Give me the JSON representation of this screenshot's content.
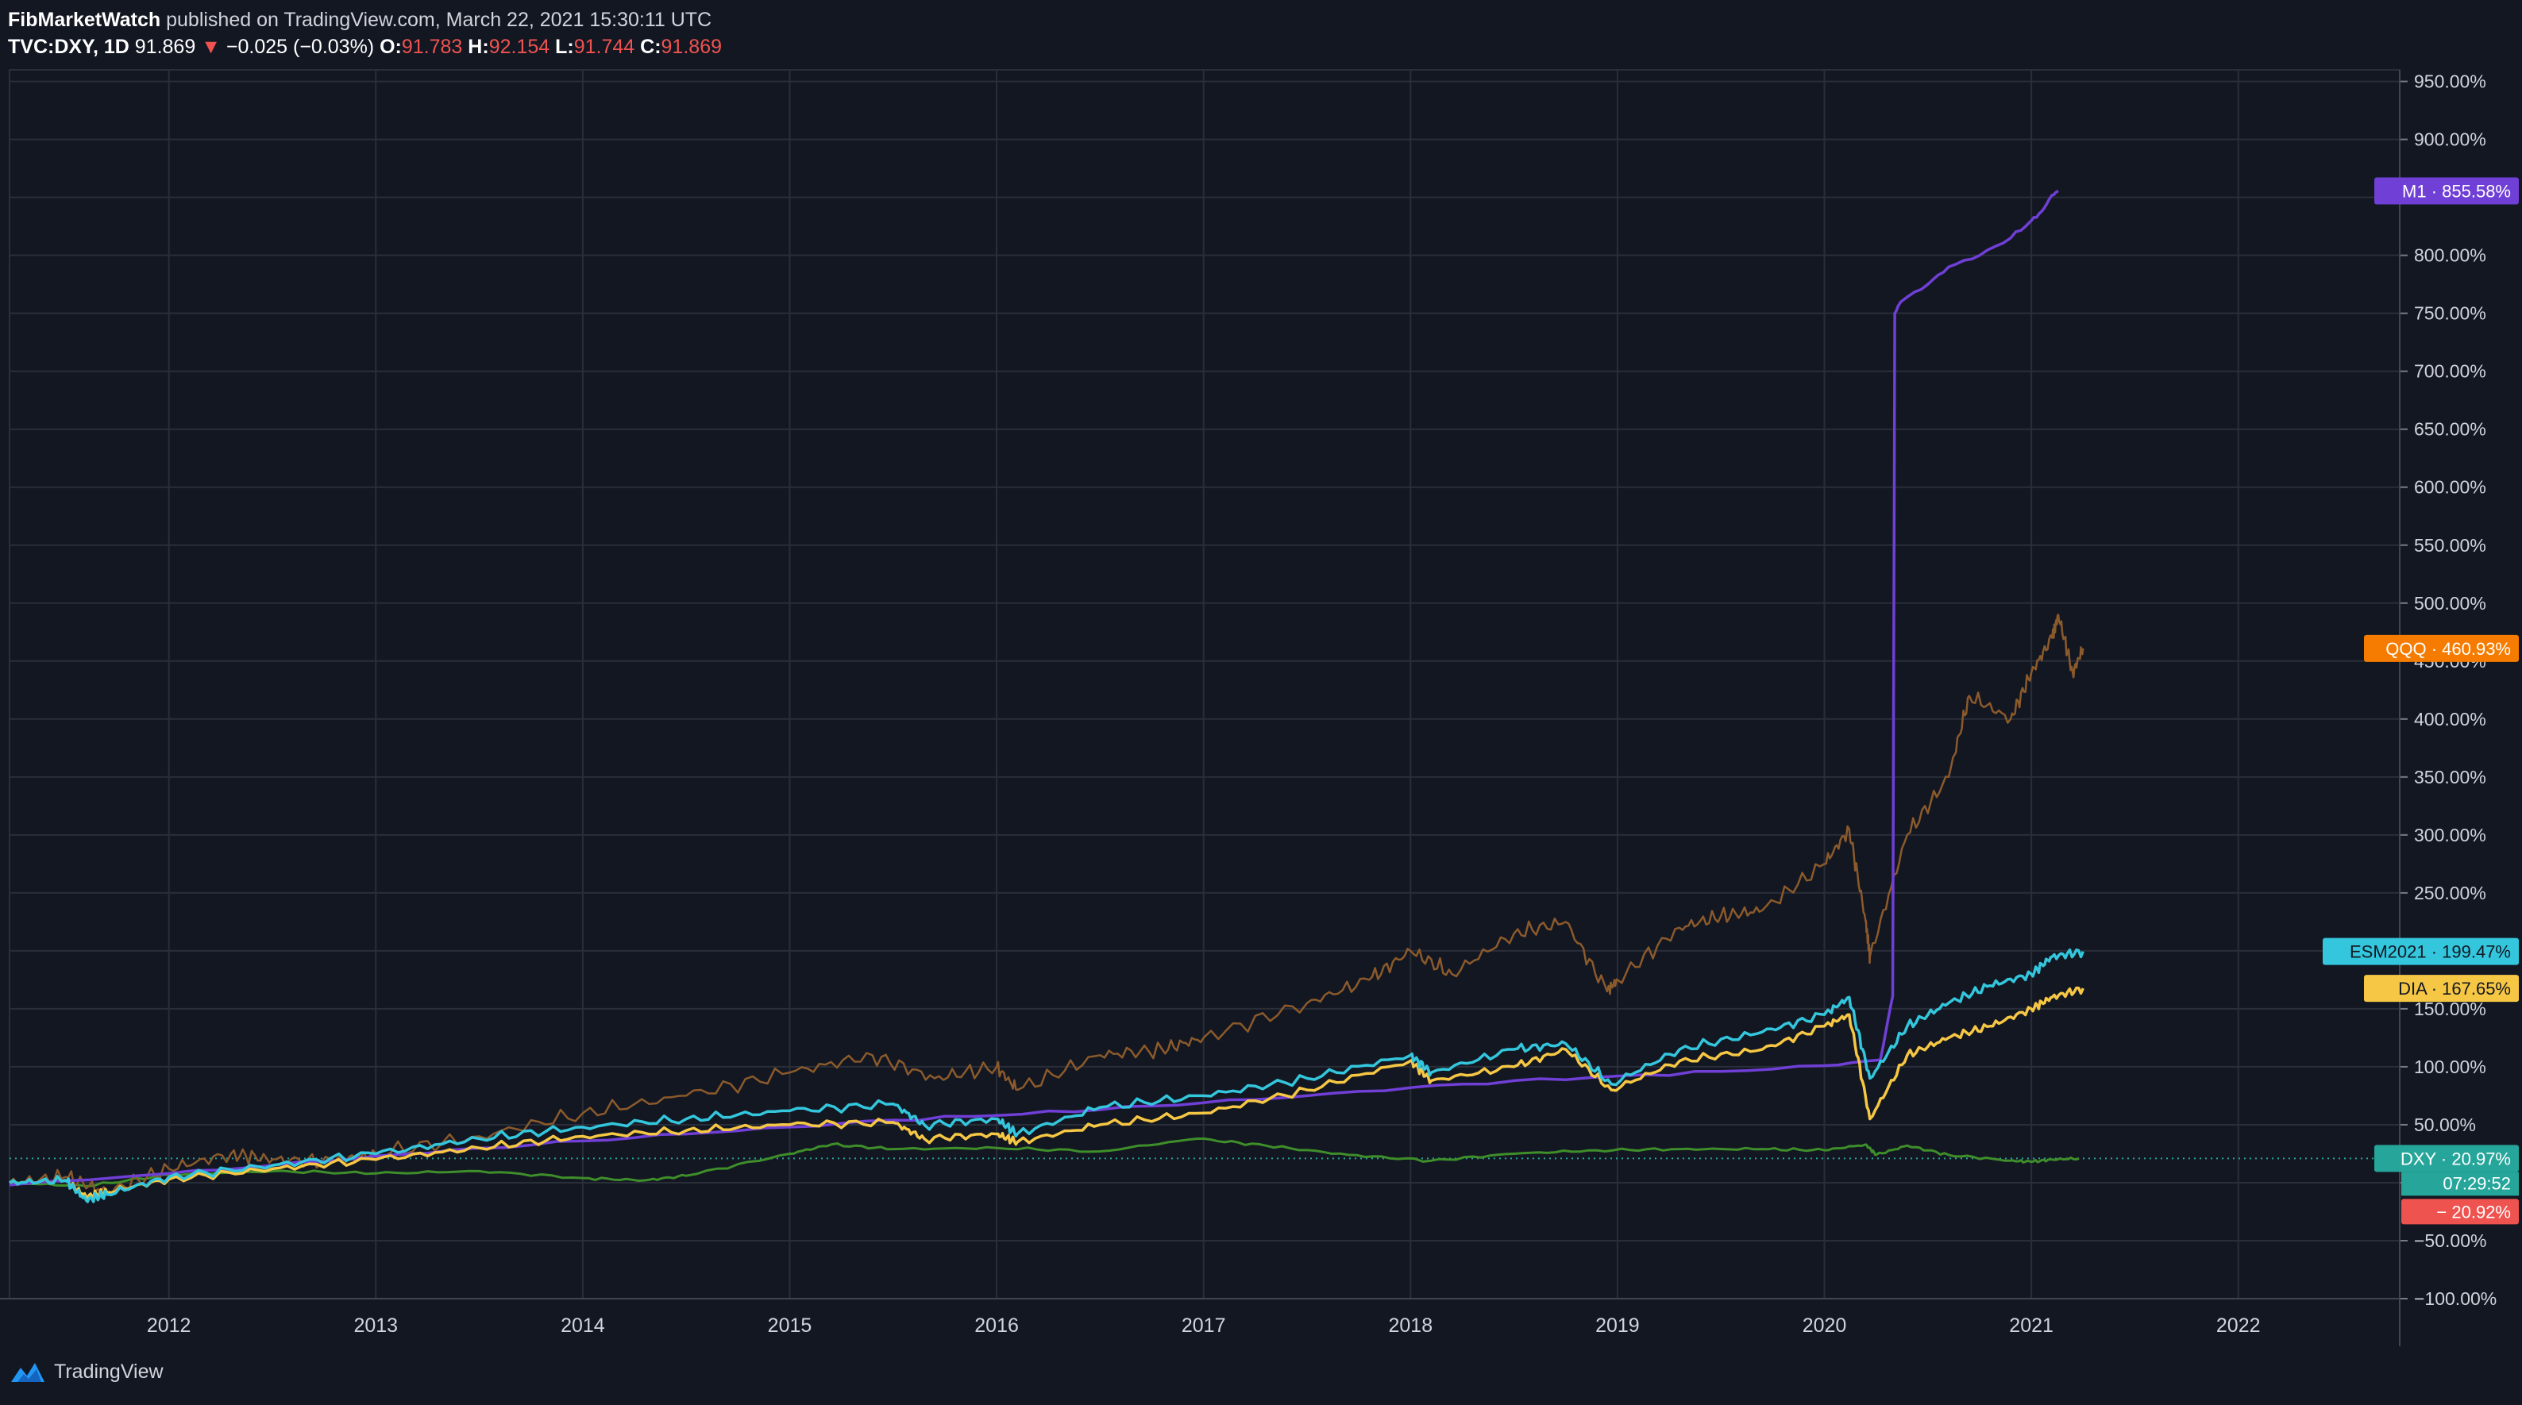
{
  "header": {
    "author": "FibMarketWatch",
    "published": "published on TradingView.com, March 22, 2021 15:30:11 UTC",
    "symbol": "TVC:DXY, 1D",
    "last": "91.869",
    "down_arrow": "▼",
    "change": "−0.025 (−0.03%)",
    "open_label": "O:",
    "open": "91.783",
    "high_label": "H:",
    "high": "92.154",
    "low_label": "L:",
    "low": "91.744",
    "close_label": "C:",
    "close": "91.869"
  },
  "footer": {
    "brand": "TradingView"
  },
  "colors": {
    "background": "#131722",
    "grid": "#2a2e39",
    "M1": "#6f3fd6",
    "QQQ": "#8b5a2b",
    "ESM2021": "#33c6dc",
    "DIA": "#f6c744",
    "DXY": "#3e8e2a",
    "DXY_label": "#26a69a",
    "neg_label": "#ef5350"
  },
  "chart_data": {
    "type": "line",
    "title": "TVC:DXY, 1D (percent comparison)",
    "xlabel": "",
    "ylabel": "",
    "x_ticks": [
      "2012",
      "2013",
      "2014",
      "2015",
      "2016",
      "2017",
      "2018",
      "2019",
      "2020",
      "2021",
      "2022"
    ],
    "x_tick_years": [
      2012,
      2013,
      2014,
      2015,
      2016,
      2017,
      2018,
      2019,
      2020,
      2021,
      2022
    ],
    "xlim": [
      2011.23,
      2022.78
    ],
    "y_ticks": [
      "950.00%",
      "900.00%",
      "850.00%",
      "800.00%",
      "750.00%",
      "700.00%",
      "650.00%",
      "600.00%",
      "550.00%",
      "500.00%",
      "450.00%",
      "400.00%",
      "350.00%",
      "300.00%",
      "250.00%",
      "200.00%",
      "150.00%",
      "100.00%",
      "50.00%",
      "0.00%",
      "−50.00%",
      "−100.00%"
    ],
    "y_tick_values": [
      950,
      900,
      850,
      800,
      750,
      700,
      650,
      600,
      550,
      500,
      450,
      400,
      350,
      300,
      250,
      200,
      150,
      100,
      50,
      0,
      -50,
      -100
    ],
    "ylim": [
      -100,
      960
    ],
    "grid": true,
    "legend": "right price-scale labels",
    "series": [
      {
        "name": "M1",
        "label_value": "855.58%",
        "last": 855.58,
        "x": [
          2011.23,
          2012.0,
          2012.5,
          2013.0,
          2013.5,
          2014.0,
          2014.5,
          2015.0,
          2015.5,
          2016.0,
          2016.5,
          2017.0,
          2017.5,
          2018.0,
          2018.5,
          2019.0,
          2019.5,
          2020.0,
          2020.27,
          2020.33,
          2020.34,
          2020.37,
          2020.5,
          2020.6,
          2020.75,
          2020.9,
          2021.0,
          2021.05,
          2021.1,
          2021.13
        ],
        "y": [
          -2,
          8,
          15,
          23,
          30,
          36,
          42,
          48,
          54,
          58,
          63,
          69,
          75,
          82,
          88,
          92,
          96,
          101,
          106,
          161,
          750,
          760,
          775,
          790,
          800,
          815,
          830,
          838,
          852,
          855.58
        ]
      },
      {
        "name": "QQQ",
        "label_value": "460.93%",
        "last": 460.93,
        "x": [
          2011.23,
          2011.5,
          2011.7,
          2012.0,
          2012.3,
          2012.5,
          2012.8,
          2013.0,
          2013.5,
          2014.0,
          2014.5,
          2015.0,
          2015.4,
          2015.7,
          2016.0,
          2016.1,
          2016.5,
          2016.8,
          2017.0,
          2017.5,
          2017.8,
          2018.0,
          2018.2,
          2018.5,
          2018.75,
          2018.95,
          2019.0,
          2019.3,
          2019.5,
          2019.7,
          2020.0,
          2020.12,
          2020.2,
          2020.22,
          2020.4,
          2020.6,
          2020.7,
          2020.9,
          2021.0,
          2021.1,
          2021.13,
          2021.2,
          2021.25
        ],
        "y": [
          0,
          5,
          -8,
          12,
          25,
          20,
          18,
          25,
          40,
          60,
          75,
          95,
          110,
          90,
          100,
          80,
          110,
          115,
          125,
          155,
          175,
          200,
          180,
          215,
          225,
          165,
          175,
          220,
          230,
          235,
          275,
          305,
          225,
          195,
          300,
          350,
          420,
          400,
          440,
          470,
          490,
          440,
          460.93
        ]
      },
      {
        "name": "ESM2021",
        "label_value": "199.47%",
        "last": 199.47,
        "x": [
          2011.23,
          2011.5,
          2011.6,
          2011.7,
          2012.0,
          2012.5,
          2013.0,
          2013.5,
          2014.0,
          2014.5,
          2015.0,
          2015.5,
          2015.65,
          2016.0,
          2016.1,
          2016.5,
          2017.0,
          2017.5,
          2018.0,
          2018.1,
          2018.5,
          2018.75,
          2018.97,
          2019.3,
          2019.7,
          2020.0,
          2020.12,
          2020.22,
          2020.4,
          2020.6,
          2020.8,
          2021.0,
          2021.1,
          2021.25
        ],
        "y": [
          0,
          2,
          -15,
          -10,
          5,
          15,
          25,
          38,
          48,
          55,
          62,
          68,
          50,
          55,
          42,
          65,
          75,
          90,
          110,
          95,
          115,
          120,
          85,
          115,
          130,
          145,
          160,
          90,
          135,
          155,
          170,
          180,
          195,
          199.47
        ]
      },
      {
        "name": "DIA",
        "label_value": "167.65%",
        "last": 167.65,
        "x": [
          2011.23,
          2011.5,
          2011.6,
          2011.7,
          2012.0,
          2012.5,
          2013.0,
          2013.5,
          2014.0,
          2014.5,
          2015.0,
          2015.5,
          2015.65,
          2016.0,
          2016.1,
          2016.5,
          2017.0,
          2017.5,
          2018.0,
          2018.1,
          2018.5,
          2018.75,
          2018.97,
          2019.3,
          2019.7,
          2020.0,
          2020.12,
          2020.22,
          2020.4,
          2020.6,
          2020.8,
          2021.0,
          2021.1,
          2021.25
        ],
        "y": [
          0,
          2,
          -12,
          -8,
          3,
          12,
          20,
          30,
          40,
          45,
          50,
          52,
          38,
          42,
          35,
          50,
          60,
          80,
          105,
          88,
          100,
          115,
          80,
          105,
          115,
          135,
          145,
          55,
          110,
          125,
          135,
          150,
          160,
          167.65
        ]
      },
      {
        "name": "DXY",
        "label_value": "20.97%",
        "last": 20.97,
        "x": [
          2011.23,
          2011.6,
          2012.0,
          2012.5,
          2013.0,
          2013.5,
          2014.0,
          2014.3,
          2014.5,
          2015.0,
          2015.2,
          2015.5,
          2016.0,
          2016.5,
          2016.97,
          2017.3,
          2017.7,
          2018.1,
          2018.5,
          2018.9,
          2019.3,
          2019.7,
          2020.0,
          2020.2,
          2020.25,
          2020.4,
          2020.6,
          2020.9,
          2021.0,
          2021.1,
          2021.23
        ],
        "y": [
          0,
          -3,
          7,
          10,
          8,
          10,
          4,
          2,
          6,
          25,
          33,
          29,
          30,
          27,
          38,
          32,
          24,
          19,
          25,
          28,
          29,
          29,
          28,
          33,
          24,
          32,
          24,
          19,
          18,
          20,
          20.97
        ]
      }
    ],
    "price_labels": [
      {
        "series": "M1",
        "text": "M1 · 855.58%"
      },
      {
        "series": "QQQ",
        "text": "QQQ · 460.93%"
      },
      {
        "series": "ESM2021",
        "text": "ESM2021 · 199.47%"
      },
      {
        "series": "DIA",
        "text": "DIA · 167.65%"
      },
      {
        "series": "DXY",
        "text": "DXY · 20.97%"
      }
    ],
    "countdown": "07:29:52",
    "neg_label": "− 20.92%",
    "baseline_value": 20.97
  }
}
